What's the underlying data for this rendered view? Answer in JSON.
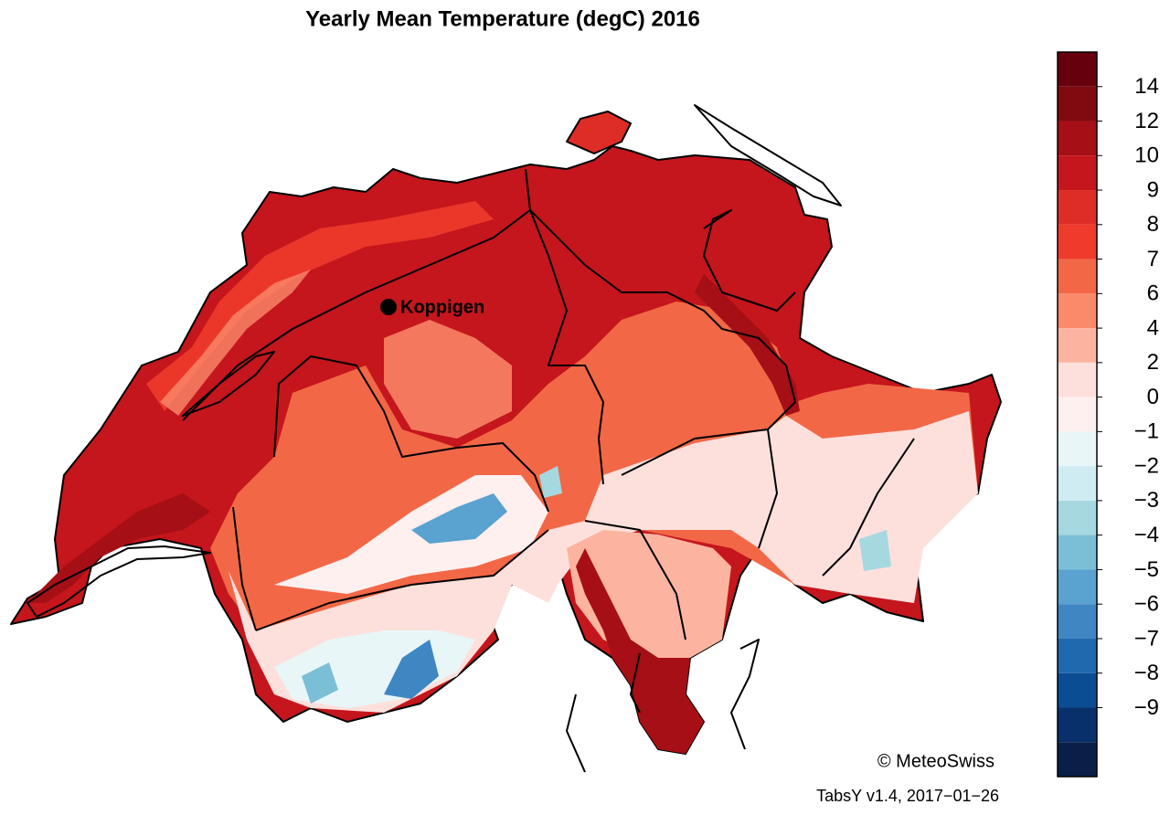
{
  "title": "Yearly Mean Temperature (degC) 2016",
  "location": {
    "label": "Koppigen"
  },
  "colorbar": {
    "labels": [
      "14",
      "12",
      "10",
      "9",
      "8",
      "7",
      "6",
      "4",
      "2",
      "0",
      "−1",
      "−2",
      "−3",
      "−4",
      "−5",
      "−6",
      "−7",
      "−8",
      "−9"
    ],
    "colors": [
      "#67000d",
      "#7f0a10",
      "#a50f15",
      "#c4161c",
      "#de2d26",
      "#ef3b2c",
      "#f26846",
      "#fb8a6a",
      "#fcb4a0",
      "#fde0dc",
      "#fff0f0",
      "#e8f6f8",
      "#cfecf2",
      "#a6d8e0",
      "#7bbfd6",
      "#5aa2cf",
      "#3f87c2",
      "#2169ae",
      "#0b4d93",
      "#08306b",
      "#0a1f47"
    ]
  },
  "credit": "© MeteoSwiss",
  "version": "TabsY v1.4, 2017−01−26"
}
